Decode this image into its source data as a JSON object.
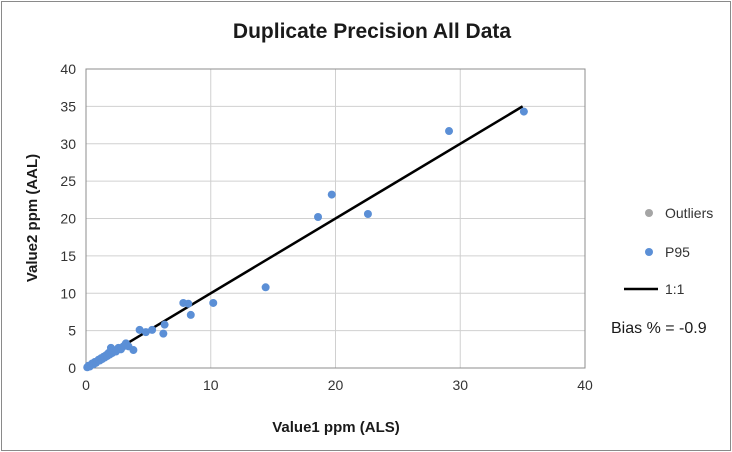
{
  "chart_data": {
    "type": "scatter",
    "title": "Duplicate Precision All Data",
    "xlabel": "Value1 ppm  (ALS)",
    "ylabel": "Value2 ppm  (AAL)",
    "xlim": [
      0,
      40
    ],
    "ylim": [
      0,
      40
    ],
    "x_ticks": [
      "0",
      "10",
      "20",
      "30",
      "40"
    ],
    "y_ticks": [
      "0",
      "5",
      "10",
      "15",
      "20",
      "25",
      "30",
      "35",
      "40"
    ],
    "grid": true,
    "legend_position": "right",
    "series": [
      {
        "name": "Outliers",
        "kind": "marker",
        "color": "#a5a5a5",
        "points": []
      },
      {
        "name": "P95",
        "kind": "marker",
        "color": "#5b8fd6",
        "points": [
          [
            0.1,
            0.1
          ],
          [
            0.2,
            0.3
          ],
          [
            0.3,
            0.2
          ],
          [
            0.4,
            0.4
          ],
          [
            0.5,
            0.6
          ],
          [
            0.6,
            0.5
          ],
          [
            0.7,
            0.8
          ],
          [
            0.8,
            0.7
          ],
          [
            0.9,
            0.9
          ],
          [
            1.0,
            1.1
          ],
          [
            1.1,
            1.0
          ],
          [
            1.2,
            1.3
          ],
          [
            1.3,
            1.2
          ],
          [
            1.4,
            1.5
          ],
          [
            1.5,
            1.4
          ],
          [
            1.6,
            1.7
          ],
          [
            1.7,
            1.6
          ],
          [
            1.8,
            2.0
          ],
          [
            1.9,
            1.8
          ],
          [
            2.0,
            2.7
          ],
          [
            2.1,
            2.0
          ],
          [
            2.2,
            2.3
          ],
          [
            2.4,
            2.2
          ],
          [
            2.6,
            2.7
          ],
          [
            2.8,
            2.5
          ],
          [
            3.0,
            2.9
          ],
          [
            3.2,
            3.3
          ],
          [
            3.4,
            2.9
          ],
          [
            3.8,
            2.4
          ],
          [
            4.3,
            5.1
          ],
          [
            4.8,
            4.8
          ],
          [
            5.3,
            5.1
          ],
          [
            6.2,
            4.6
          ],
          [
            6.3,
            5.8
          ],
          [
            7.8,
            8.7
          ],
          [
            8.2,
            8.6
          ],
          [
            8.4,
            7.1
          ],
          [
            10.2,
            8.7
          ],
          [
            14.4,
            10.8
          ],
          [
            18.6,
            20.2
          ],
          [
            19.7,
            23.2
          ],
          [
            22.6,
            20.6
          ],
          [
            29.1,
            31.7
          ],
          [
            35.1,
            34.3
          ]
        ]
      },
      {
        "name": "1:1",
        "kind": "line",
        "color": "#000000",
        "points": [
          [
            0,
            0
          ],
          [
            35,
            35
          ]
        ]
      }
    ],
    "annotation": "Bias % = -0.9"
  }
}
